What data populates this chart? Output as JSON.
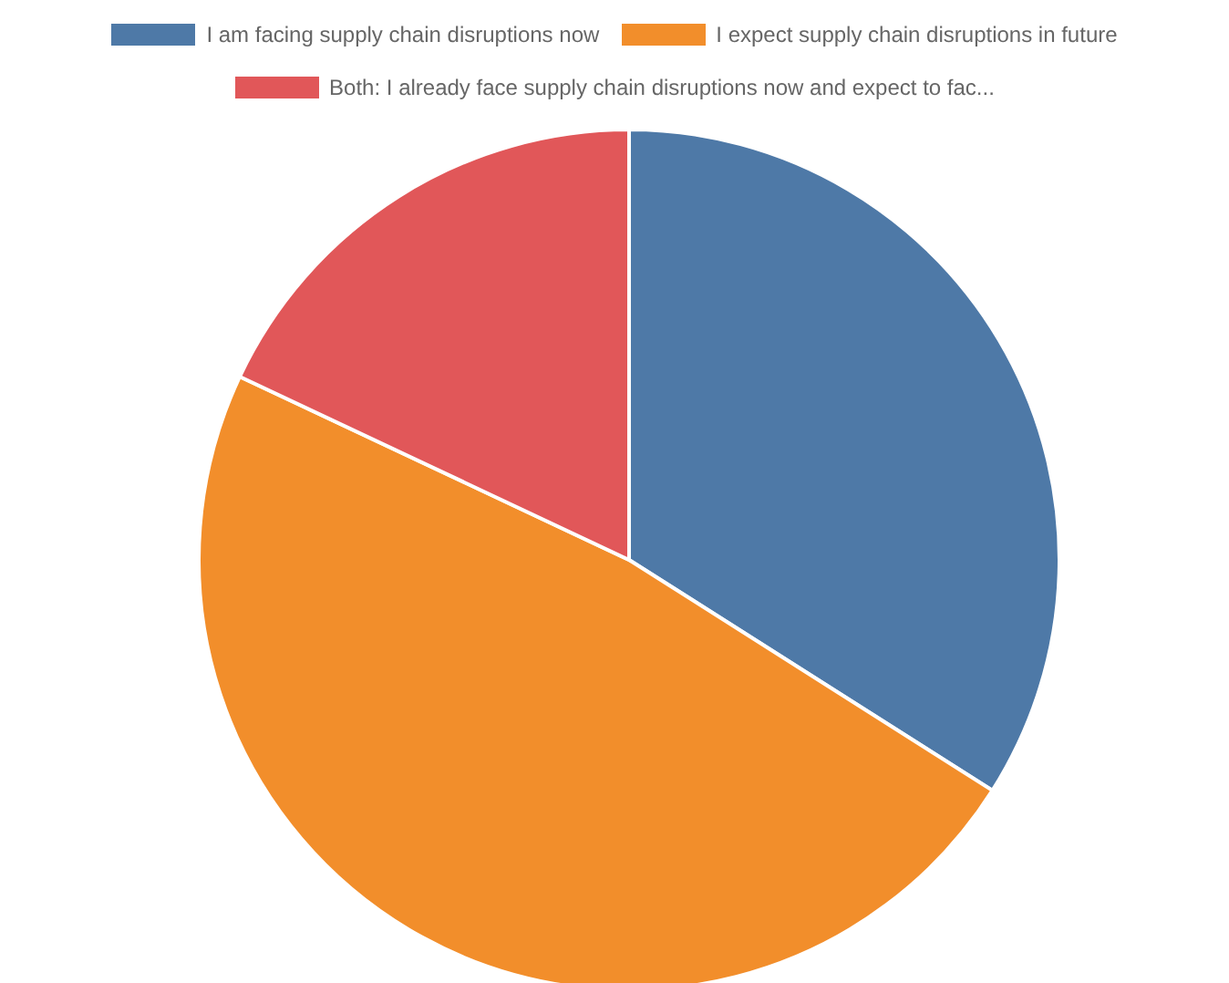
{
  "chart_data": {
    "type": "pie",
    "categories": [
      "I am facing supply chain disruptions now",
      "I expect supply chain disruptions in future",
      "Both: I already face supply chain disruptions now and expect to fac..."
    ],
    "values": [
      34,
      48,
      18
    ],
    "colors": [
      "#4e79a7",
      "#f28e2b",
      "#e15759"
    ],
    "legend": "top"
  }
}
